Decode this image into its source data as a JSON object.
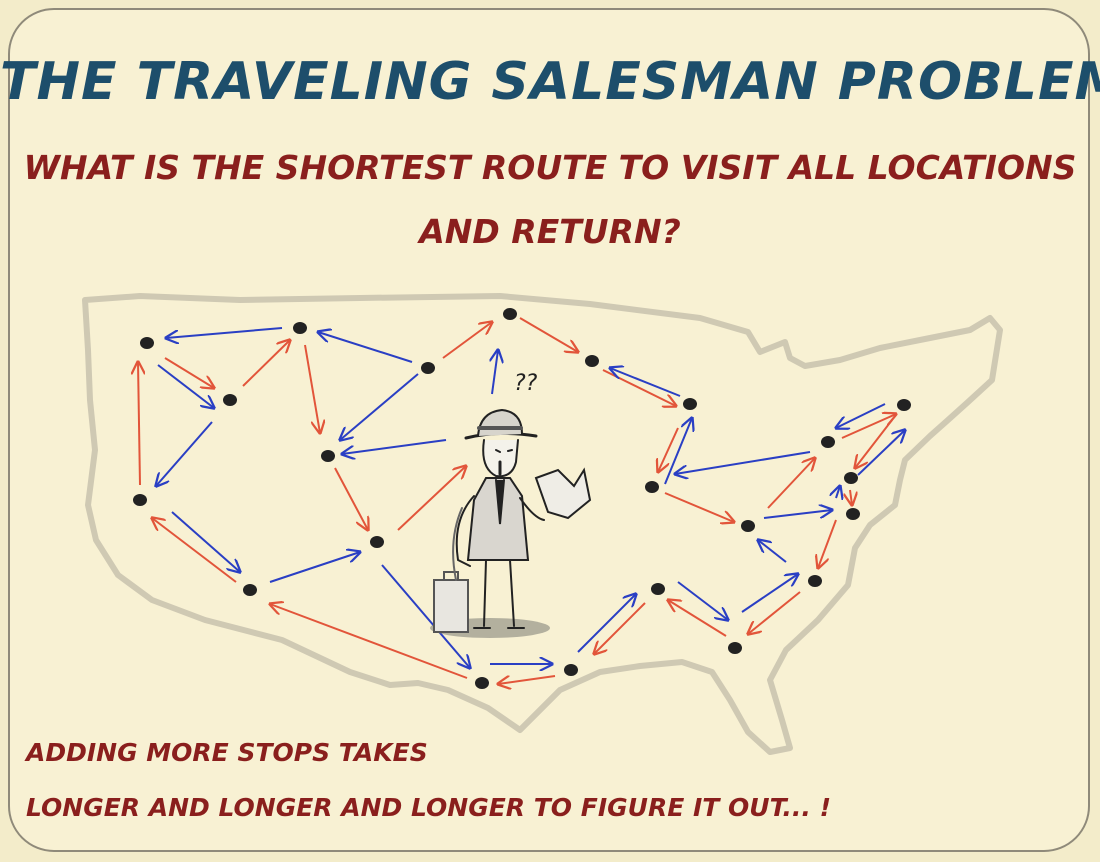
{
  "title": "THE TRAVELING SALESMAN PROBLEM",
  "question": {
    "line1": "WHAT IS THE SHORTEST ROUTE TO VISIT ALL LOCATIONS",
    "line2": "AND RETURN?"
  },
  "character": {
    "thought": "??"
  },
  "footer": {
    "line1": "ADDING MORE STOPS TAKES",
    "line2": "LONGER AND LONGER AND LONGER TO FIGURE IT OUT... !"
  },
  "colors": {
    "title": "#1d4e6b",
    "text_red": "#8a1f1d",
    "route_blue": "#2a3fc4",
    "route_red": "#e2553a",
    "city": "#222222"
  }
}
